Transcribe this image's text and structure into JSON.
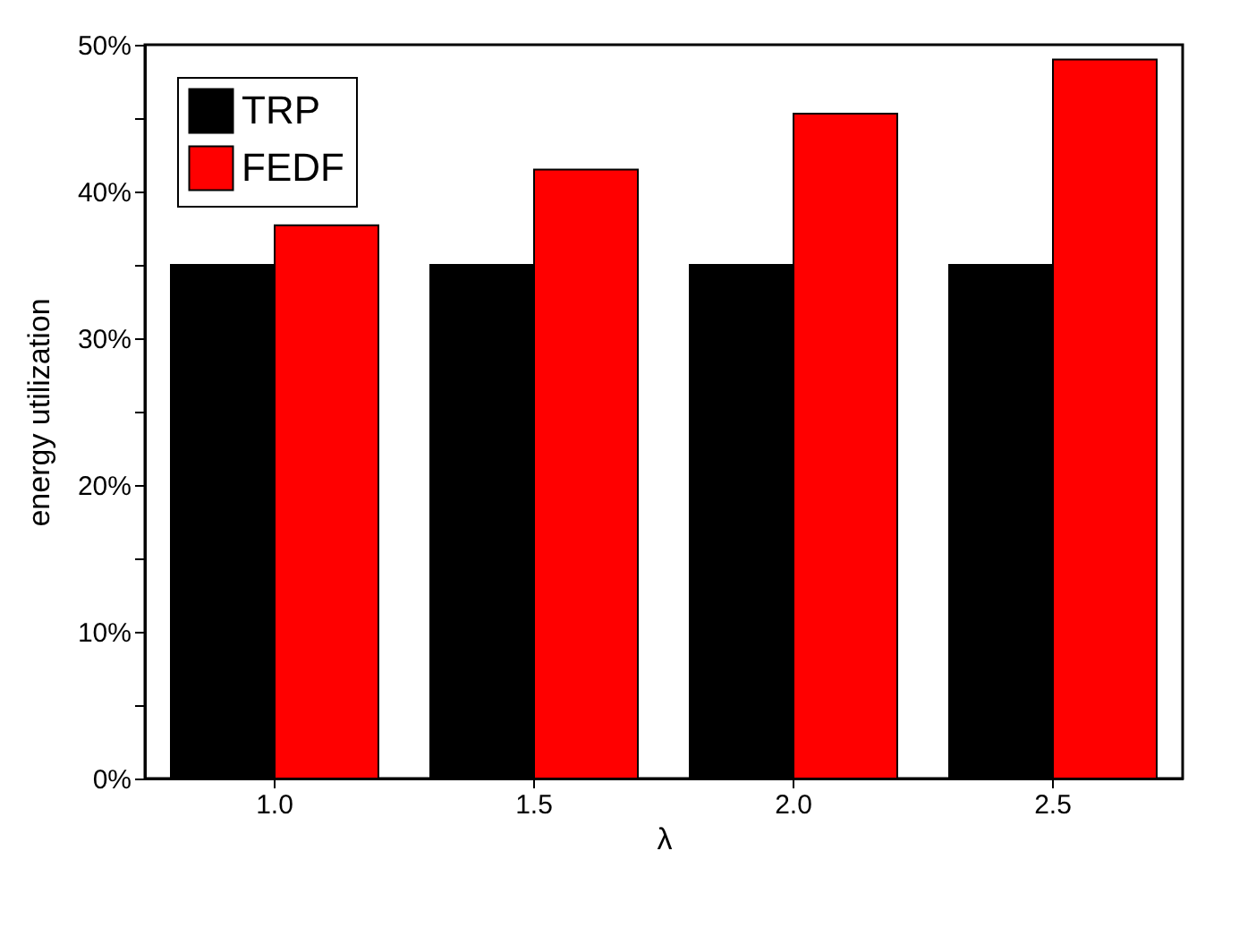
{
  "chart_data": {
    "type": "bar",
    "xlabel": "λ",
    "ylabel": "energy utilization",
    "categories": [
      "1.0",
      "1.5",
      "2.0",
      "2.5"
    ],
    "series": [
      {
        "name": "TRP",
        "color": "#000000",
        "values": [
          35.0,
          35.0,
          35.0,
          35.0
        ]
      },
      {
        "name": "FEDF",
        "color": "#ff0000",
        "values": [
          37.7,
          41.5,
          45.3,
          49.0
        ]
      }
    ],
    "ylim": [
      0,
      50
    ],
    "yticks": [
      {
        "value": 0,
        "label": "0%"
      },
      {
        "value": 5,
        "label": null
      },
      {
        "value": 10,
        "label": "10%"
      },
      {
        "value": 15,
        "label": null
      },
      {
        "value": 20,
        "label": "20%"
      },
      {
        "value": 25,
        "label": null
      },
      {
        "value": 30,
        "label": "30%"
      },
      {
        "value": 35,
        "label": null
      },
      {
        "value": 40,
        "label": "40%"
      },
      {
        "value": 45,
        "label": null
      },
      {
        "value": 50,
        "label": "50%"
      }
    ],
    "grid": false,
    "legend": "top left"
  }
}
